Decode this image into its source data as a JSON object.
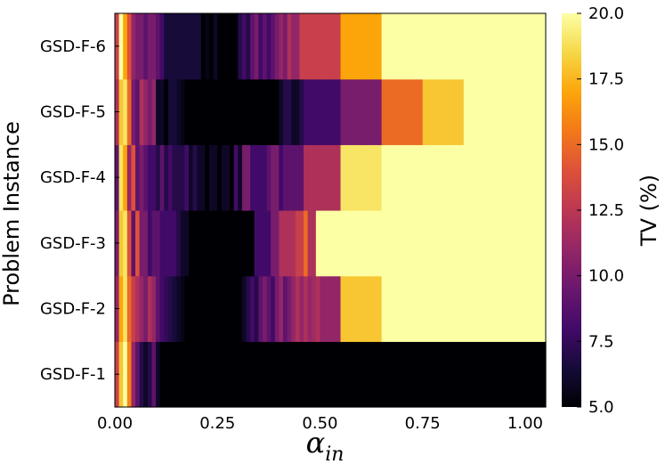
{
  "chart_data": {
    "type": "heatmap",
    "xlabel_base": "α",
    "xlabel_sub": "in",
    "ylabel": "Problem Instance",
    "colorbar_label": "TV (%)",
    "x_range": [
      0.0,
      1.05
    ],
    "x_ticks": [
      "0.00",
      "0.25",
      "0.50",
      "0.75",
      "1.00"
    ],
    "x_tick_values": [
      0.0,
      0.25,
      0.5,
      0.75,
      1.0
    ],
    "c_range": [
      5.0,
      20.0
    ],
    "c_ticks": [
      "5.0",
      "7.5",
      "10.0",
      "12.5",
      "15.0",
      "17.5",
      "20.0"
    ],
    "c_tick_values": [
      5.0,
      7.5,
      10.0,
      12.5,
      15.0,
      17.5,
      20.0
    ],
    "x_bin_edges": [
      0.0,
      0.01,
      0.02,
      0.03,
      0.04,
      0.05,
      0.06,
      0.07,
      0.08,
      0.09,
      0.1,
      0.11,
      0.12,
      0.13,
      0.14,
      0.15,
      0.16,
      0.17,
      0.18,
      0.19,
      0.2,
      0.21,
      0.22,
      0.23,
      0.24,
      0.25,
      0.26,
      0.27,
      0.28,
      0.29,
      0.3,
      0.31,
      0.32,
      0.33,
      0.34,
      0.35,
      0.36,
      0.37,
      0.38,
      0.39,
      0.4,
      0.41,
      0.42,
      0.43,
      0.44,
      0.45,
      0.46,
      0.47,
      0.48,
      0.49,
      0.5,
      0.55,
      0.6,
      0.65,
      0.7,
      0.75,
      0.8,
      0.85,
      0.9,
      0.95,
      1.0,
      1.05
    ],
    "instances": [
      "GSD-F-1",
      "GSD-F-2",
      "GSD-F-3",
      "GSD-F-4",
      "GSD-F-5",
      "GSD-F-6"
    ],
    "values": [
      [
        13.0,
        18.0,
        20.0,
        16.0,
        11.0,
        9.0,
        7.0,
        6.0,
        7.0,
        9.0,
        6.0,
        5.0,
        5.0,
        5.0,
        5.0,
        5.0,
        5.0,
        5.0,
        5.0,
        5.0,
        5.0,
        5.0,
        5.0,
        5.0,
        5.0,
        5.0,
        5.0,
        5.0,
        5.0,
        5.0,
        5.0,
        5.0,
        5.0,
        5.0,
        5.0,
        5.0,
        5.0,
        5.0,
        5.0,
        5.0,
        5.0,
        5.0,
        5.0,
        5.0,
        5.0,
        5.0,
        5.0,
        5.0,
        5.0,
        5.0,
        5.0,
        5.0,
        5.0,
        5.0,
        5.0,
        5.0,
        5.0,
        5.0,
        5.0,
        5.0,
        5.0
      ],
      [
        11.0,
        17.0,
        19.0,
        15.0,
        13.0,
        12.0,
        11.0,
        10.0,
        12.0,
        11.0,
        9.0,
        8.0,
        7.5,
        7.0,
        6.5,
        6.0,
        5.5,
        5.0,
        5.0,
        5.0,
        5.0,
        5.0,
        5.0,
        5.0,
        5.0,
        5.0,
        5.0,
        5.0,
        5.0,
        5.0,
        5.0,
        6.0,
        7.0,
        8.0,
        7.0,
        9.0,
        10.0,
        9.0,
        8.0,
        10.0,
        11.0,
        9.0,
        10.0,
        11.0,
        12.0,
        11.0,
        12.0,
        11.0,
        11.5,
        12.0,
        11.0,
        18.0,
        18.0,
        20.0,
        20.0,
        20.0,
        20.0,
        20.0,
        20.0,
        20.0,
        20.0
      ],
      [
        10.0,
        18.0,
        19.0,
        14.0,
        9.0,
        14.0,
        10.0,
        10.0,
        8.0,
        9.0,
        9.0,
        8.0,
        8.0,
        8.0,
        8.0,
        7.0,
        6.0,
        6.0,
        5.0,
        5.0,
        5.0,
        5.0,
        5.0,
        5.0,
        5.0,
        5.0,
        5.0,
        5.0,
        5.0,
        5.0,
        5.0,
        5.0,
        5.0,
        5.0,
        8.0,
        8.0,
        8.0,
        8.0,
        10.0,
        10.0,
        12.0,
        12.0,
        12.0,
        12.0,
        13.0,
        13.0,
        15.0,
        12.0,
        12.0,
        20.0,
        20.0,
        20.0,
        20.0,
        20.0,
        20.0,
        20.0,
        20.0,
        20.0,
        20.0,
        20.0,
        20.0
      ],
      [
        9.0,
        19.0,
        17.0,
        11.0,
        14.0,
        9.0,
        10.0,
        9.0,
        8.0,
        8.0,
        7.0,
        9.0,
        7.0,
        8.0,
        7.0,
        7.0,
        7.0,
        8.0,
        6.0,
        7.0,
        6.0,
        6.0,
        5.0,
        6.0,
        6.0,
        5.0,
        6.0,
        6.0,
        5.0,
        8.0,
        6.0,
        10.0,
        10.0,
        8.0,
        8.0,
        8.0,
        8.0,
        9.0,
        10.0,
        10.0,
        8.0,
        9.0,
        9.0,
        9.0,
        9.0,
        9.0,
        12.0,
        12.0,
        12.0,
        12.0,
        12.0,
        19.0,
        19.0,
        20.0,
        20.0,
        20.0,
        20.0,
        20.0,
        20.0,
        20.0,
        20.0
      ],
      [
        12.0,
        18.0,
        19.0,
        15.0,
        10.0,
        9.0,
        12.0,
        11.0,
        10.0,
        11.0,
        6.0,
        6.0,
        5.0,
        6.5,
        6.5,
        6.0,
        5.5,
        5.0,
        5.0,
        5.0,
        5.0,
        5.0,
        5.0,
        5.0,
        5.0,
        5.0,
        5.0,
        5.0,
        5.0,
        5.0,
        5.0,
        5.0,
        5.0,
        5.0,
        5.0,
        5.0,
        5.0,
        5.0,
        5.0,
        5.0,
        6.0,
        7.0,
        7.0,
        6.0,
        6.0,
        7.0,
        8.0,
        8.0,
        8.0,
        8.0,
        8.0,
        10.0,
        10.0,
        15.0,
        15.0,
        18.0,
        18.0,
        20.0,
        20.0,
        20.0,
        20.0
      ],
      [
        13.0,
        20.0,
        17.0,
        14.0,
        11.0,
        10.0,
        10.0,
        9.0,
        10.0,
        10.0,
        9.0,
        8.0,
        6.5,
        6.5,
        6.5,
        6.5,
        6.5,
        6.5,
        6.5,
        6.5,
        6.5,
        5.0,
        5.5,
        5.0,
        6.0,
        5.0,
        5.0,
        5.0,
        5.0,
        5.0,
        7.0,
        8.0,
        7.0,
        9.0,
        10.0,
        8.0,
        9.0,
        8.0,
        9.0,
        10.0,
        11.0,
        10.0,
        12.0,
        11.0,
        11.0,
        13.0,
        13.0,
        13.0,
        13.0,
        13.0,
        13.0,
        17.0,
        17.0,
        20.0,
        20.0,
        20.0,
        20.0,
        20.0,
        20.0,
        20.0,
        20.0
      ]
    ]
  }
}
